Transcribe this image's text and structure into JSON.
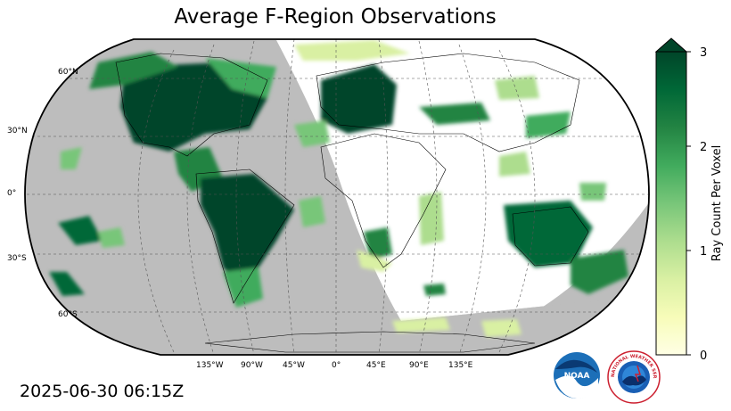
{
  "title": "Average F-Region Observations",
  "timestamp": "2025-06-30 06:15Z",
  "colorbar": {
    "label": "Ray Count Per Voxel",
    "ticks": [
      "0",
      "1",
      "2",
      "3"
    ],
    "min": 0,
    "max": 3,
    "extend": "max",
    "colormap": "YlGn",
    "colors": [
      "#ffffe5",
      "#f7fcb9",
      "#d9f0a3",
      "#addd8e",
      "#78c679",
      "#41ab5d",
      "#238443",
      "#006837",
      "#004529"
    ]
  },
  "map": {
    "projection": "Robinson",
    "graticule": "dashed",
    "night_color": "#bdbdbd",
    "day_color": "#ffffff",
    "lat_labels": [
      "60°N",
      "30°N",
      "0°",
      "30°S",
      "60°S"
    ],
    "lon_labels": [
      "135°W",
      "90°W",
      "45°W",
      "0°",
      "45°E",
      "90°E",
      "135°E"
    ]
  },
  "logos": {
    "noaa": "NOAA",
    "nws": "NATIONAL WEATHER SERVICE"
  }
}
